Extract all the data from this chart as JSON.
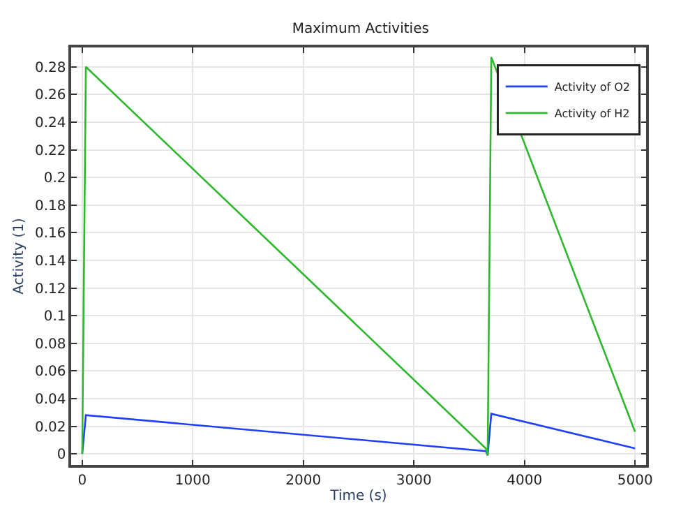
{
  "chart_data": {
    "type": "line",
    "title": "Maximum Activities",
    "xlabel": "Time (s)",
    "ylabel": "Activity (1)",
    "xlim": [
      -100,
      5100
    ],
    "xticks": [
      0,
      1000,
      2000,
      3000,
      4000,
      5000
    ],
    "ylim": [
      -0.008,
      0.294
    ],
    "yticks": [
      {
        "value": 0,
        "label": "0"
      },
      0.02,
      0.04,
      0.06,
      0.08,
      0.1,
      0.12,
      0.14,
      0.16,
      0.18,
      0.2,
      0.22,
      0.24,
      0.26,
      0.28
    ],
    "grid": true,
    "legend": "top right",
    "marker": "none",
    "line_style": "solid",
    "series": [
      {
        "name": "Activity of O2",
        "color": "#1f3fff",
        "x": [
          0,
          33,
          3650,
          3667,
          3700,
          5000
        ],
        "values": [
          0,
          0.028,
          0.002,
          -0.001,
          0.029,
          0.004
        ]
      },
      {
        "name": "Activity of H2",
        "color": "#2db82d",
        "x": [
          0,
          33,
          3650,
          3667,
          3700,
          5000
        ],
        "values": [
          0,
          0.28,
          0.004,
          -0.001,
          0.287,
          0.016
        ]
      }
    ]
  }
}
